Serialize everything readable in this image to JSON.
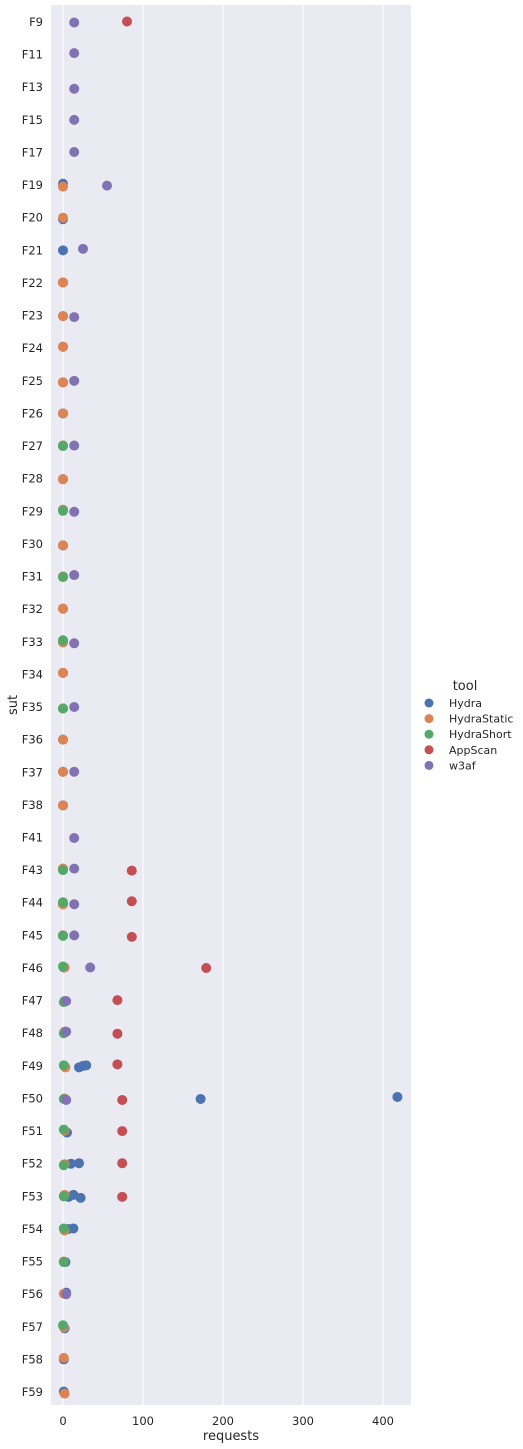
{
  "chart_data": {
    "type": "scatter",
    "orientation": "horizontal-strip",
    "xlabel": "requests",
    "ylabel": "sut",
    "xlim": [
      -15,
      435
    ],
    "xticks": [
      0,
      100,
      200,
      300,
      400
    ],
    "grid": true,
    "legend_title": "tool",
    "legend_position": "right",
    "categories": [
      "F9",
      "F11",
      "F13",
      "F15",
      "F17",
      "F19",
      "F20",
      "F21",
      "F22",
      "F23",
      "F24",
      "F25",
      "F26",
      "F27",
      "F28",
      "F29",
      "F30",
      "F31",
      "F32",
      "F33",
      "F34",
      "F35",
      "F36",
      "F37",
      "F38",
      "F41",
      "F43",
      "F44",
      "F45",
      "F46",
      "F47",
      "F48",
      "F49",
      "F50",
      "F51",
      "F52",
      "F53",
      "F54",
      "F55",
      "F56",
      "F57",
      "F58",
      "F59"
    ],
    "series": [
      {
        "name": "Hydra",
        "color": "#4c72b0",
        "points": [
          {
            "cat": "F19",
            "x": 0
          },
          {
            "cat": "F20",
            "x": 0
          },
          {
            "cat": "F21",
            "x": 0
          },
          {
            "cat": "F22",
            "x": 0
          },
          {
            "cat": "F23",
            "x": 0
          },
          {
            "cat": "F24",
            "x": 0
          },
          {
            "cat": "F25",
            "x": 0
          },
          {
            "cat": "F26",
            "x": 0
          },
          {
            "cat": "F27",
            "x": 0
          },
          {
            "cat": "F28",
            "x": 0
          },
          {
            "cat": "F29",
            "x": 0
          },
          {
            "cat": "F30",
            "x": 0
          },
          {
            "cat": "F31",
            "x": 0
          },
          {
            "cat": "F32",
            "x": 0
          },
          {
            "cat": "F33",
            "x": 0
          },
          {
            "cat": "F34",
            "x": 0
          },
          {
            "cat": "F35",
            "x": 0
          },
          {
            "cat": "F36",
            "x": 0
          },
          {
            "cat": "F37",
            "x": 0
          },
          {
            "cat": "F38",
            "x": 0
          },
          {
            "cat": "F43",
            "x": 0
          },
          {
            "cat": "F44",
            "x": 0
          },
          {
            "cat": "F45",
            "x": 0
          },
          {
            "cat": "F46",
            "x": 1
          },
          {
            "cat": "F47",
            "x": 2
          },
          {
            "cat": "F48",
            "x": 3
          },
          {
            "cat": "F49",
            "x": 20
          },
          {
            "cat": "F49",
            "x": 25
          },
          {
            "cat": "F49",
            "x": 29
          },
          {
            "cat": "F50",
            "x": 172
          },
          {
            "cat": "F50",
            "x": 418
          },
          {
            "cat": "F51",
            "x": 5
          },
          {
            "cat": "F52",
            "x": 10
          },
          {
            "cat": "F52",
            "x": 20
          },
          {
            "cat": "F53",
            "x": 7
          },
          {
            "cat": "F53",
            "x": 13
          },
          {
            "cat": "F53",
            "x": 22
          },
          {
            "cat": "F54",
            "x": 7
          },
          {
            "cat": "F54",
            "x": 13
          },
          {
            "cat": "F55",
            "x": 3
          },
          {
            "cat": "F56",
            "x": 4
          },
          {
            "cat": "F57",
            "x": 2
          },
          {
            "cat": "F58",
            "x": 1
          },
          {
            "cat": "F59",
            "x": 1
          }
        ]
      },
      {
        "name": "HydraStatic",
        "color": "#dd8452",
        "points": [
          {
            "cat": "F19",
            "x": 0
          },
          {
            "cat": "F20",
            "x": 0
          },
          {
            "cat": "F22",
            "x": 0
          },
          {
            "cat": "F23",
            "x": 0
          },
          {
            "cat": "F24",
            "x": 0
          },
          {
            "cat": "F25",
            "x": 0
          },
          {
            "cat": "F26",
            "x": 0
          },
          {
            "cat": "F27",
            "x": 0
          },
          {
            "cat": "F28",
            "x": 0
          },
          {
            "cat": "F29",
            "x": 0
          },
          {
            "cat": "F30",
            "x": 0
          },
          {
            "cat": "F31",
            "x": 0
          },
          {
            "cat": "F32",
            "x": 0
          },
          {
            "cat": "F33",
            "x": 0
          },
          {
            "cat": "F34",
            "x": 0
          },
          {
            "cat": "F35",
            "x": 0
          },
          {
            "cat": "F36",
            "x": 0
          },
          {
            "cat": "F37",
            "x": 0
          },
          {
            "cat": "F38",
            "x": 0
          },
          {
            "cat": "F43",
            "x": 0
          },
          {
            "cat": "F44",
            "x": 0
          },
          {
            "cat": "F45",
            "x": 0
          },
          {
            "cat": "F46",
            "x": 2
          },
          {
            "cat": "F47",
            "x": 3
          },
          {
            "cat": "F48",
            "x": 2
          },
          {
            "cat": "F49",
            "x": 3
          },
          {
            "cat": "F50",
            "x": 2
          },
          {
            "cat": "F51",
            "x": 2
          },
          {
            "cat": "F52",
            "x": 2
          },
          {
            "cat": "F53",
            "x": 2
          },
          {
            "cat": "F54",
            "x": 2
          },
          {
            "cat": "F55",
            "x": 1
          },
          {
            "cat": "F56",
            "x": 1
          },
          {
            "cat": "F57",
            "x": 1
          },
          {
            "cat": "F58",
            "x": 1
          },
          {
            "cat": "F59",
            "x": 2
          }
        ]
      },
      {
        "name": "HydraShort",
        "color": "#55a868",
        "points": [
          {
            "cat": "F27",
            "x": 0
          },
          {
            "cat": "F29",
            "x": 0
          },
          {
            "cat": "F31",
            "x": 0
          },
          {
            "cat": "F33",
            "x": 0
          },
          {
            "cat": "F35",
            "x": 0
          },
          {
            "cat": "F43",
            "x": 0
          },
          {
            "cat": "F44",
            "x": 0
          },
          {
            "cat": "F45",
            "x": 0
          },
          {
            "cat": "F46",
            "x": 0
          },
          {
            "cat": "F47",
            "x": 1
          },
          {
            "cat": "F48",
            "x": 1
          },
          {
            "cat": "F49",
            "x": 1
          },
          {
            "cat": "F50",
            "x": 1
          },
          {
            "cat": "F51",
            "x": 1
          },
          {
            "cat": "F52",
            "x": 1
          },
          {
            "cat": "F53",
            "x": 1
          },
          {
            "cat": "F54",
            "x": 1
          },
          {
            "cat": "F55",
            "x": 1
          },
          {
            "cat": "F57",
            "x": 0
          }
        ]
      },
      {
        "name": "AppScan",
        "color": "#c44e52",
        "points": [
          {
            "cat": "F9",
            "x": 80
          },
          {
            "cat": "F43",
            "x": 86
          },
          {
            "cat": "F44",
            "x": 86
          },
          {
            "cat": "F45",
            "x": 86
          },
          {
            "cat": "F46",
            "x": 179
          },
          {
            "cat": "F47",
            "x": 68
          },
          {
            "cat": "F48",
            "x": 68
          },
          {
            "cat": "F49",
            "x": 68
          },
          {
            "cat": "F50",
            "x": 74
          },
          {
            "cat": "F51",
            "x": 74
          },
          {
            "cat": "F52",
            "x": 74
          },
          {
            "cat": "F53",
            "x": 74
          }
        ]
      },
      {
        "name": "w3af",
        "color": "#8172b3",
        "points": [
          {
            "cat": "F9",
            "x": 14
          },
          {
            "cat": "F11",
            "x": 14
          },
          {
            "cat": "F13",
            "x": 14
          },
          {
            "cat": "F15",
            "x": 14
          },
          {
            "cat": "F17",
            "x": 14
          },
          {
            "cat": "F19",
            "x": 55
          },
          {
            "cat": "F21",
            "x": 25
          },
          {
            "cat": "F23",
            "x": 14
          },
          {
            "cat": "F25",
            "x": 14
          },
          {
            "cat": "F27",
            "x": 14
          },
          {
            "cat": "F29",
            "x": 14
          },
          {
            "cat": "F31",
            "x": 14
          },
          {
            "cat": "F33",
            "x": 14
          },
          {
            "cat": "F35",
            "x": 14
          },
          {
            "cat": "F37",
            "x": 14
          },
          {
            "cat": "F41",
            "x": 14
          },
          {
            "cat": "F43",
            "x": 14
          },
          {
            "cat": "F44",
            "x": 14
          },
          {
            "cat": "F45",
            "x": 14
          },
          {
            "cat": "F46",
            "x": 34
          },
          {
            "cat": "F47",
            "x": 4
          },
          {
            "cat": "F48",
            "x": 4
          },
          {
            "cat": "F50",
            "x": 4
          },
          {
            "cat": "F56",
            "x": 4
          }
        ]
      }
    ]
  }
}
